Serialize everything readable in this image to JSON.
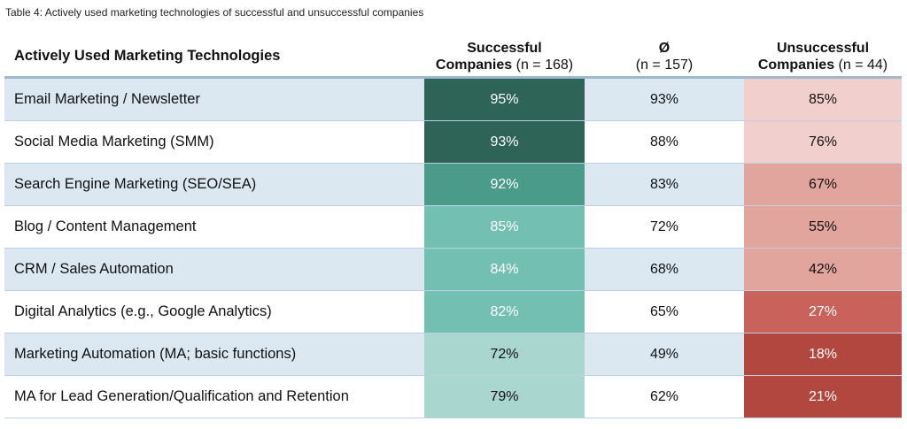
{
  "caption": "Table 4: Actively used marketing technologies of successful and unsuccessful companies",
  "chart_data": {
    "type": "table",
    "title": "Table 4: Actively used marketing technologies of successful and unsuccessful companies",
    "headers": {
      "label": "Actively Used Marketing Technologies",
      "successful_title": "Successful",
      "successful_sub": "Companies",
      "successful_n": "(n = 168)",
      "avg_title": "Ø",
      "avg_n": "(n = 157)",
      "unsuccessful_title": "Unsuccessful",
      "unsuccessful_sub": "Companies",
      "unsuccessful_n": "(n = 44)"
    },
    "rows": [
      {
        "label": "Email Marketing / Newsletter",
        "successful": "95%",
        "avg": "93%",
        "unsuccessful": "85%",
        "s_val": 95,
        "u_val": 85
      },
      {
        "label": "Social Media Marketing (SMM)",
        "successful": "93%",
        "avg": "88%",
        "unsuccessful": "76%",
        "s_val": 93,
        "u_val": 76
      },
      {
        "label": "Search Engine Marketing (SEO/SEA)",
        "successful": "92%",
        "avg": "83%",
        "unsuccessful": "67%",
        "s_val": 92,
        "u_val": 67
      },
      {
        "label": "Blog / Content Management",
        "successful": "85%",
        "avg": "72%",
        "unsuccessful": "55%",
        "s_val": 85,
        "u_val": 55
      },
      {
        "label": "CRM / Sales Automation",
        "successful": "84%",
        "avg": "68%",
        "unsuccessful": "42%",
        "s_val": 84,
        "u_val": 42
      },
      {
        "label": "Digital Analytics (e.g., Google Analytics)",
        "successful": "82%",
        "avg": "65%",
        "unsuccessful": "27%",
        "s_val": 82,
        "u_val": 27
      },
      {
        "label": "Marketing Automation (MA; basic functions)",
        "successful": "72%",
        "avg": "49%",
        "unsuccessful": "18%",
        "s_val": 72,
        "u_val": 18
      },
      {
        "label": "MA for Lead Generation/Qualification and Retention",
        "successful": "79%",
        "avg": "62%",
        "unsuccessful": "21%",
        "s_val": 79,
        "u_val": 21
      }
    ],
    "colors": {
      "successful_scale": [
        "#2e6458",
        "#4a9b8a",
        "#73c0b3",
        "#a9d6cf"
      ],
      "unsuccessful_scale": [
        "#f0cfcc",
        "#e1a59d",
        "#c9625a",
        "#b24740"
      ],
      "row_shade": "#dce8f1",
      "rule": "#9fb8cc"
    }
  }
}
